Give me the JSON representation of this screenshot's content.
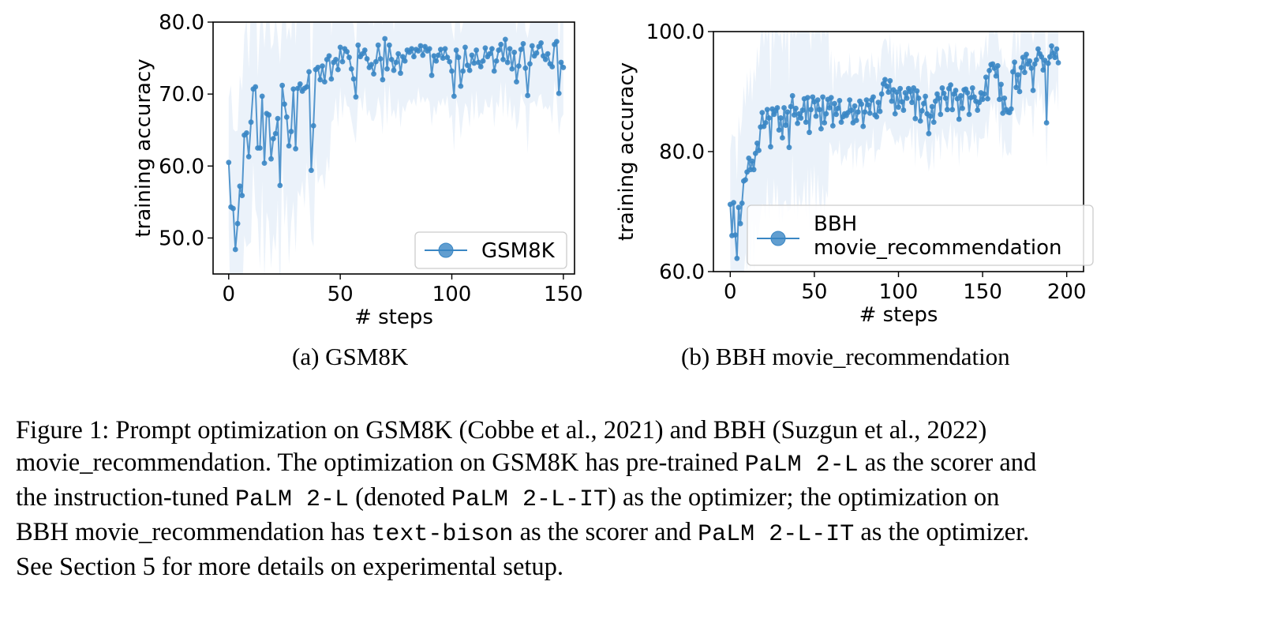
{
  "chart_data": [
    {
      "id": "gsm8k",
      "type": "line",
      "xlabel": "# steps",
      "ylabel": "training accuracy",
      "xlim": [
        -7,
        155
      ],
      "ylim": [
        45,
        80
      ],
      "xticks": [
        0,
        50,
        100,
        150
      ],
      "xtick_labels": [
        "0",
        "50",
        "100",
        "150"
      ],
      "yticks": [
        50,
        60,
        70,
        80
      ],
      "ytick_labels": [
        "50.0",
        "60.0",
        "70.0",
        "80.0"
      ],
      "legend": "GSM8K",
      "legend_position": "lower-right",
      "color": "#3a86c4",
      "x_start": 0,
      "values": [
        60.5,
        54.3,
        54.1,
        48.4,
        52.0,
        57.2,
        55.9,
        64.3,
        64.6,
        61.3,
        66.1,
        70.7,
        71.0,
        62.5,
        62.5,
        69.7,
        60.4,
        67.3,
        67.1,
        61.0,
        63.8,
        64.5,
        66.6,
        57.3,
        71.2,
        68.6,
        66.8,
        62.8,
        64.8,
        70.7,
        62.4,
        70.8,
        71.4,
        70.4,
        70.8,
        71.0,
        73.1,
        59.4,
        65.6,
        73.4,
        73.7,
        72.0,
        73.9,
        71.7,
        74.8,
        75.3,
        72.1,
        74.4,
        74.8,
        73.4,
        76.5,
        74.5,
        76.3,
        75.9,
        75.1,
        73.5,
        72.1,
        69.6,
        76.8,
        75.2,
        75.6,
        76.1,
        74.9,
        73.7,
        74.1,
        72.8,
        74.5,
        76.8,
        74.9,
        72.0,
        77.7,
        73.5,
        76.8,
        74.8,
        73.3,
        74.4,
        75.6,
        72.9,
        75.2,
        74.6,
        76.1,
        75.8,
        76.3,
        75.2,
        76.2,
        76.0,
        76.7,
        75.4,
        76.6,
        76.0,
        76.3,
        72.6,
        75.3,
        74.6,
        75.4,
        76.2,
        75.0,
        76.3,
        75.1,
        74.5,
        73.2,
        69.7,
        76.1,
        75.1,
        71.1,
        73.2,
        76.5,
        74.0,
        73.3,
        75.4,
        74.3,
        76.1,
        74.4,
        73.8,
        74.6,
        76.4,
        75.2,
        75.6,
        76.3,
        73.2,
        74.6,
        76.1,
        76.9,
        74.8,
        77.6,
        74.4,
        76.3,
        73.5,
        75.8,
        71.7,
        73.9,
        76.2,
        77.0,
        73.6,
        69.8,
        74.2,
        76.7,
        75.3,
        75.7,
        76.6,
        77.1,
        75.3,
        74.8,
        75.6,
        74.2,
        73.8,
        76.9,
        77.3,
        70.1,
        74.4,
        73.7
      ]
    },
    {
      "id": "bbh",
      "type": "line",
      "xlabel": "# steps",
      "ylabel": "training accuracy",
      "xlim": [
        -10,
        210
      ],
      "ylim": [
        60,
        100
      ],
      "xticks": [
        0,
        50,
        100,
        150,
        200
      ],
      "xtick_labels": [
        "0",
        "50",
        "100",
        "150",
        "200"
      ],
      "yticks": [
        60,
        80,
        100
      ],
      "ytick_labels": [
        "60.0",
        "80.0",
        "100.0"
      ],
      "legend_lines": [
        "BBH",
        "movie_recommendation"
      ],
      "legend_position": "lower-right",
      "color": "#3a86c4",
      "x_start": 0,
      "values": [
        71.2,
        66.0,
        71.5,
        66.1,
        62.2,
        70.7,
        68.0,
        71.4,
        75.1,
        75.3,
        76.6,
        78.9,
        77.0,
        78.4,
        77.0,
        79.7,
        81.4,
        80.2,
        84.1,
        86.5,
        84.2,
        84.8,
        87.0,
        85.6,
        80.8,
        87.1,
        86.2,
        86.8,
        87.3,
        83.6,
        85.6,
        82.3,
        87.3,
        84.4,
        86.6,
        80.7,
        87.5,
        89.3,
        86.1,
        87.2,
        84.7,
        86.3,
        85.6,
        86.9,
        88.8,
        84.9,
        89.0,
        83.2,
        87.0,
        89.1,
        88.3,
        85.9,
        88.6,
        87.0,
        83.8,
        89.1,
        84.8,
        86.3,
        88.7,
        87.3,
        89.0,
        84.3,
        88.0,
        86.2,
        87.2,
        88.5,
        84.9,
        85.8,
        86.3,
        86.0,
        86.5,
        88.6,
        86.9,
        84.8,
        87.6,
        85.2,
        86.6,
        88.4,
        87.9,
        84.2,
        86.6,
        88.6,
        87.8,
        86.4,
        88.6,
        89.1,
        86.1,
        85.8,
        88.2,
        86.7,
        89.6,
        91.3,
        92.0,
        90.9,
        89.9,
        91.8,
        88.4,
        90.3,
        86.3,
        89.9,
        87.4,
        90.5,
        88.3,
        86.9,
        89.8,
        88.9,
        90.5,
        90.0,
        88.2,
        90.6,
        85.5,
        90.1,
        88.9,
        85.1,
        86.8,
        88.0,
        89.2,
        86.3,
        83.0,
        85.9,
        87.5,
        84.9,
        88.4,
        89.6,
        88.9,
        86.2,
        90.6,
        89.7,
        88.9,
        87.0,
        90.5,
        91.1,
        87.0,
        89.6,
        90.2,
        88.8,
        85.4,
        89.3,
        87.2,
        90.3,
        90.4,
        89.8,
        86.2,
        89.0,
        90.6,
        89.1,
        88.4,
        86.9,
        88.2,
        89.8,
        88.7,
        89.6,
        92.4,
        88.8,
        93.5,
        94.5,
        94.6,
        93.9,
        92.6,
        94.3,
        88.7,
        91.2,
        86.4,
        88.9,
        87.0,
        86.6,
        86.5,
        87.1,
        93.3,
        94.9,
        90.7,
        92.8,
        90.0,
        94.0,
        95.7,
        93.2,
        96.2,
        94.6,
        95.1,
        93.9,
        90.2,
        94.6,
        95.3,
        97.1,
        96.3,
        95.8,
        93.6,
        95.2,
        84.8,
        94.7,
        95.8,
        97.6,
        96.4,
        95.7,
        97.1,
        94.8
      ]
    }
  ],
  "subcaptions": {
    "a": "(a) GSM8K",
    "b": "(b) BBH movie_recommendation"
  },
  "caption": {
    "line1": "Figure 1: Prompt optimization on GSM8K (Cobbe et al., 2021) and BBH (Suzgun et al., 2022)",
    "line2_a": "movie_recommendation. The optimization on GSM8K has pre-trained ",
    "line2_code": "PaLM 2-L",
    "line2_b": " as the scorer and",
    "line3_a": "the instruction-tuned ",
    "line3_code1": "PaLM 2-L",
    "line3_b": " (denoted ",
    "line3_code2": "PaLM 2-L-IT",
    "line3_c": ") as the optimizer; the optimization on",
    "line4_a": "BBH movie_recommendation has ",
    "line4_code1": "text-bison",
    "line4_b": " as the scorer and ",
    "line4_code2": "PaLM 2-L-IT",
    "line4_c": " as the optimizer.",
    "line5": "See Section 5 for more details on experimental setup."
  }
}
